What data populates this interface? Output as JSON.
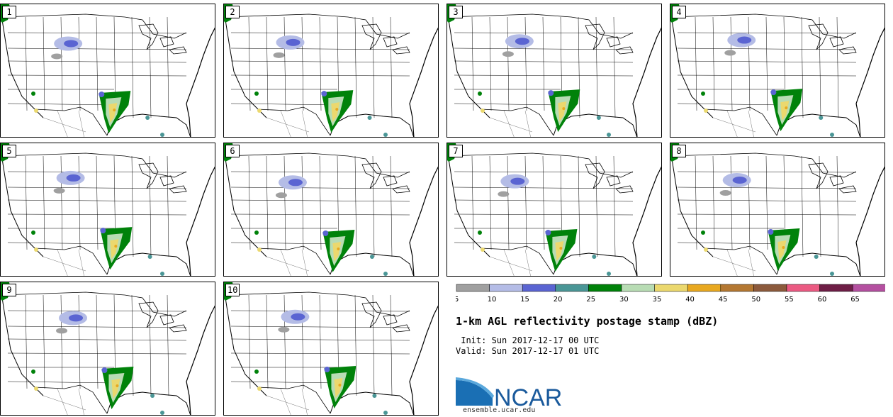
{
  "panels": [
    {
      "label": "1"
    },
    {
      "label": "2"
    },
    {
      "label": "3"
    },
    {
      "label": "4"
    },
    {
      "label": "5"
    },
    {
      "label": "6"
    },
    {
      "label": "7"
    },
    {
      "label": "8"
    },
    {
      "label": "9"
    },
    {
      "label": "10"
    }
  ],
  "colorbar": {
    "colors": [
      "#a0a0a0",
      "#b4bce6",
      "#5a64d2",
      "#4a9696",
      "#00820a",
      "#b8dcb4",
      "#ebd86e",
      "#e8a820",
      "#b47832",
      "#8c5a3c",
      "#eb5a82",
      "#6e1e46",
      "#b450a0"
    ],
    "tick_labels": [
      "5",
      "10",
      "15",
      "20",
      "25",
      "30",
      "35",
      "40",
      "45",
      "50",
      "55",
      "60",
      "65"
    ]
  },
  "header": {
    "title": "1-km AGL reflectivity postage stamp (dBZ)",
    "init": " Init: Sun 2017-12-17 00 UTC",
    "valid": "Valid: Sun 2017-12-17 01 UTC"
  },
  "branding": {
    "logo_text": "NCAR",
    "url": "ensemble.ucar.edu"
  }
}
